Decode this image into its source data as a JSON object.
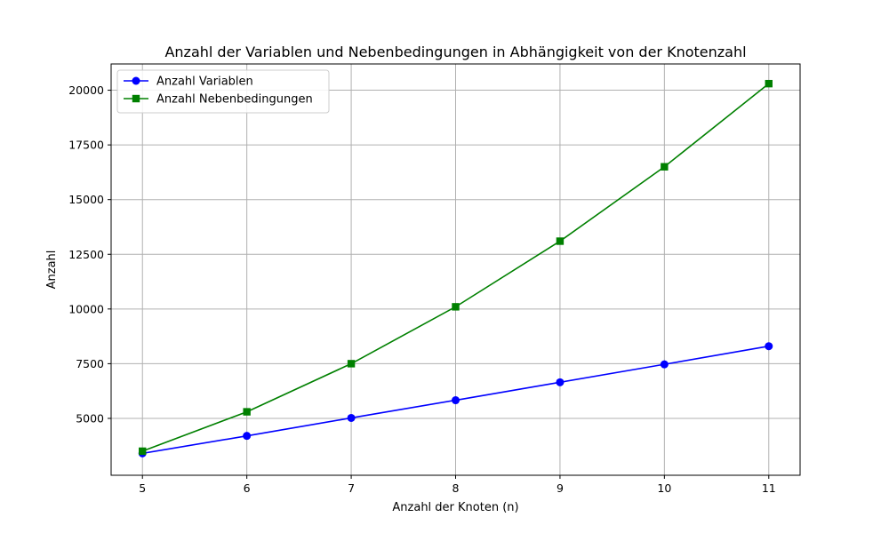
{
  "chart_data": {
    "type": "line",
    "title": "Anzahl der Variablen und Nebenbedingungen in Abhängigkeit von der Knotenzahl",
    "xlabel": "Anzahl der Knoten (n)",
    "ylabel": "Anzahl",
    "x": [
      5,
      6,
      7,
      8,
      9,
      10,
      11
    ],
    "xlim": [
      4.7,
      11.3
    ],
    "ylim": [
      2400,
      21200
    ],
    "xticks": [
      5,
      6,
      7,
      8,
      9,
      10,
      11
    ],
    "yticks": [
      5000,
      7500,
      10000,
      12500,
      15000,
      17500,
      20000
    ],
    "grid": true,
    "legend_position": "top-left",
    "series": [
      {
        "name": "Anzahl Variablen",
        "color": "#0000ff",
        "marker": "circle",
        "values": [
          3400,
          4200,
          5020,
          5830,
          6650,
          7470,
          8300
        ]
      },
      {
        "name": "Anzahl Nebenbedingungen",
        "color": "#008000",
        "marker": "square",
        "values": [
          3500,
          5300,
          7500,
          10100,
          13100,
          16500,
          20300
        ]
      }
    ]
  }
}
